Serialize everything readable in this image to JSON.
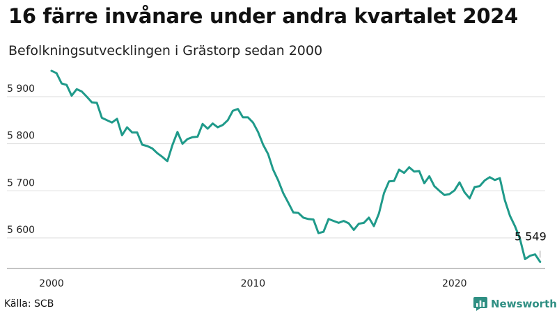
{
  "title": "16 färre invånare under andra kvartalet 2024",
  "subtitle": "Befolkningsutvecklingen i Grästorp sedan 2000",
  "source": "Källa: SCB",
  "brand": {
    "name": "Newsworthy",
    "icon": "bar-chart-logo-icon",
    "color": "#2f8f83"
  },
  "colors": {
    "line": "#1f9a8a",
    "grid": "#dddddd",
    "axis": "#888888"
  },
  "chart_data": {
    "type": "line",
    "title": "16 färre invånare under andra kvartalet 2024",
    "subtitle": "Befolkningsutvecklingen i Grästorp sedan 2000",
    "xlabel": "",
    "ylabel": "",
    "xlim": [
      2000,
      2024.5
    ],
    "ylim": [
      5535,
      5965
    ],
    "x_ticks": [
      {
        "value": 2000,
        "label": "2000"
      },
      {
        "value": 2010,
        "label": "2010"
      },
      {
        "value": 2020,
        "label": "2020"
      }
    ],
    "y_ticks": [
      {
        "value": 5600,
        "label": "5 600"
      },
      {
        "value": 5700,
        "label": "5 700"
      },
      {
        "value": 5800,
        "label": "5 800"
      },
      {
        "value": 5900,
        "label": "5 900"
      }
    ],
    "grid": true,
    "end_label": "5 549",
    "series": [
      {
        "x": [
          2000.0,
          2000.25,
          2000.5,
          2000.75,
          2001.0,
          2001.25,
          2001.5,
          2001.75,
          2002.0,
          2002.25,
          2002.5,
          2002.75,
          2003.0,
          2003.25,
          2003.5,
          2003.75,
          2004.0,
          2004.25,
          2004.5,
          2004.75,
          2005.0,
          2005.25,
          2005.5,
          2005.75,
          2006.0,
          2006.25,
          2006.5,
          2006.75,
          2007.0,
          2007.25,
          2007.5,
          2007.75,
          2008.0,
          2008.25,
          2008.5,
          2008.75,
          2009.0,
          2009.25,
          2009.5,
          2009.75,
          2010.0,
          2010.25,
          2010.5,
          2010.75,
          2011.0,
          2011.25,
          2011.5,
          2011.75,
          2012.0,
          2012.25,
          2012.5,
          2012.75,
          2013.0,
          2013.25,
          2013.5,
          2013.75,
          2014.0,
          2014.25,
          2014.5,
          2014.75,
          2015.0,
          2015.25,
          2015.5,
          2015.75,
          2016.0,
          2016.25,
          2016.5,
          2016.75,
          2017.0,
          2017.25,
          2017.5,
          2017.75,
          2018.0,
          2018.25,
          2018.5,
          2018.75,
          2019.0,
          2019.25,
          2019.5,
          2019.75,
          2020.0,
          2020.25,
          2020.5,
          2020.75,
          2021.0,
          2021.25,
          2021.5,
          2021.75,
          2022.0,
          2022.25,
          2022.5,
          2022.75,
          2023.0,
          2023.25,
          2023.5,
          2023.75,
          2024.0,
          2024.25
        ],
        "y": [
          5955,
          5950,
          5928,
          5925,
          5902,
          5916,
          5911,
          5900,
          5888,
          5887,
          5855,
          5850,
          5845,
          5853,
          5818,
          5835,
          5824,
          5824,
          5798,
          5795,
          5790,
          5780,
          5772,
          5763,
          5797,
          5825,
          5800,
          5810,
          5814,
          5815,
          5842,
          5832,
          5843,
          5835,
          5840,
          5850,
          5870,
          5874,
          5856,
          5856,
          5845,
          5825,
          5798,
          5778,
          5745,
          5722,
          5695,
          5675,
          5654,
          5653,
          5643,
          5640,
          5639,
          5610,
          5613,
          5640,
          5636,
          5632,
          5636,
          5631,
          5617,
          5630,
          5632,
          5643,
          5625,
          5652,
          5695,
          5720,
          5721,
          5745,
          5738,
          5750,
          5741,
          5742,
          5716,
          5731,
          5710,
          5700,
          5691,
          5693,
          5701,
          5718,
          5697,
          5684,
          5708,
          5710,
          5722,
          5729,
          5723,
          5727,
          5680,
          5647,
          5625,
          5598,
          5555,
          5562,
          5565,
          5549
        ]
      }
    ]
  }
}
